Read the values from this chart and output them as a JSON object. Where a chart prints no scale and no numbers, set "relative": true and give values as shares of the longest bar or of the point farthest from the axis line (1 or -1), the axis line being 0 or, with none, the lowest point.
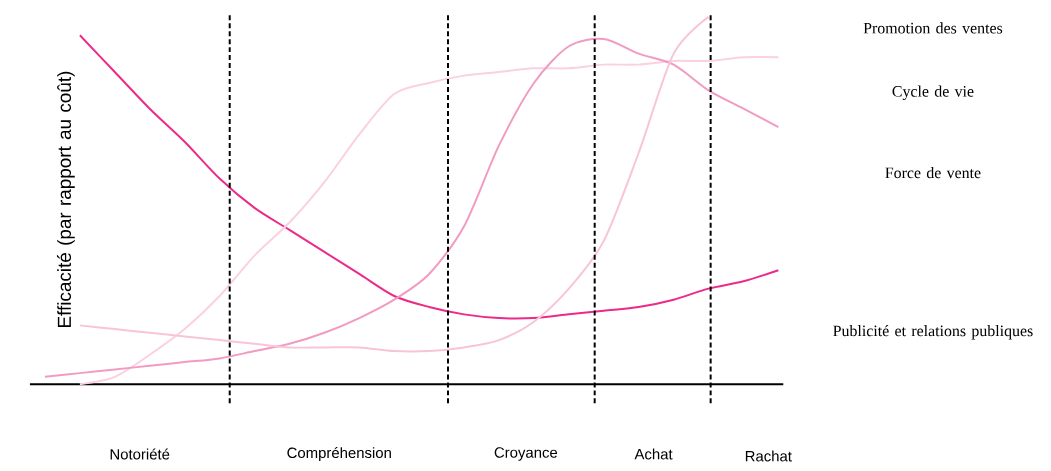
{
  "chart_data": {
    "type": "line",
    "relative": true,
    "ylabel": "Efficacité (par rapport au coût)",
    "marker": "none",
    "categories": [
      null,
      null,
      null,
      null,
      null,
      null,
      null,
      null,
      null,
      null,
      null,
      null,
      null,
      null,
      null,
      null,
      null,
      null,
      null,
      null,
      null,
      null
    ],
    "series": [
      {
        "color": "#ec2a8a",
        "values": [
          null,
          0.95,
          0.85,
          0.75,
          0.66,
          0.56,
          0.48,
          0.42,
          0.36,
          0.3,
          0.24,
          0.21,
          0.19,
          0.18,
          0.18,
          0.19,
          0.2,
          0.21,
          0.23,
          0.26,
          0.28,
          0.31
        ]
      },
      {
        "color": "#fbd0e1",
        "values": [
          null,
          0,
          0.02,
          0.08,
          0.15,
          0.24,
          0.35,
          0.44,
          0.55,
          0.68,
          0.79,
          0.82,
          0.84,
          0.85,
          0.86,
          0.86,
          0.87,
          0.87,
          0.88,
          0.88,
          0.89,
          0.89
        ]
      },
      {
        "color": "#f29bc2",
        "values": [
          0.02,
          0.03,
          0.04,
          0.05,
          0.06,
          0.07,
          0.09,
          0.11,
          0.14,
          0.18,
          0.23,
          0.3,
          0.43,
          0.65,
          0.82,
          0.92,
          0.94,
          0.9,
          0.87,
          0.8,
          0.75,
          0.7
        ]
      },
      {
        "color": "#f8c4da",
        "values": [
          null,
          0.16,
          0.15,
          0.14,
          0.13,
          0.12,
          0.11,
          0.1,
          0.1,
          0.1,
          0.09,
          0.09,
          0.1,
          0.12,
          0.17,
          0.26,
          0.39,
          0.63,
          0.9,
          1.0,
          null,
          null
        ]
      }
    ],
    "annotations": [
      "Notoriété",
      "Compréhension",
      "Croyance",
      "Achat",
      "Rachat",
      "Promotion des ventes",
      "Cycle de vie",
      "Force de vente",
      "Publicité et relations publiques"
    ]
  }
}
